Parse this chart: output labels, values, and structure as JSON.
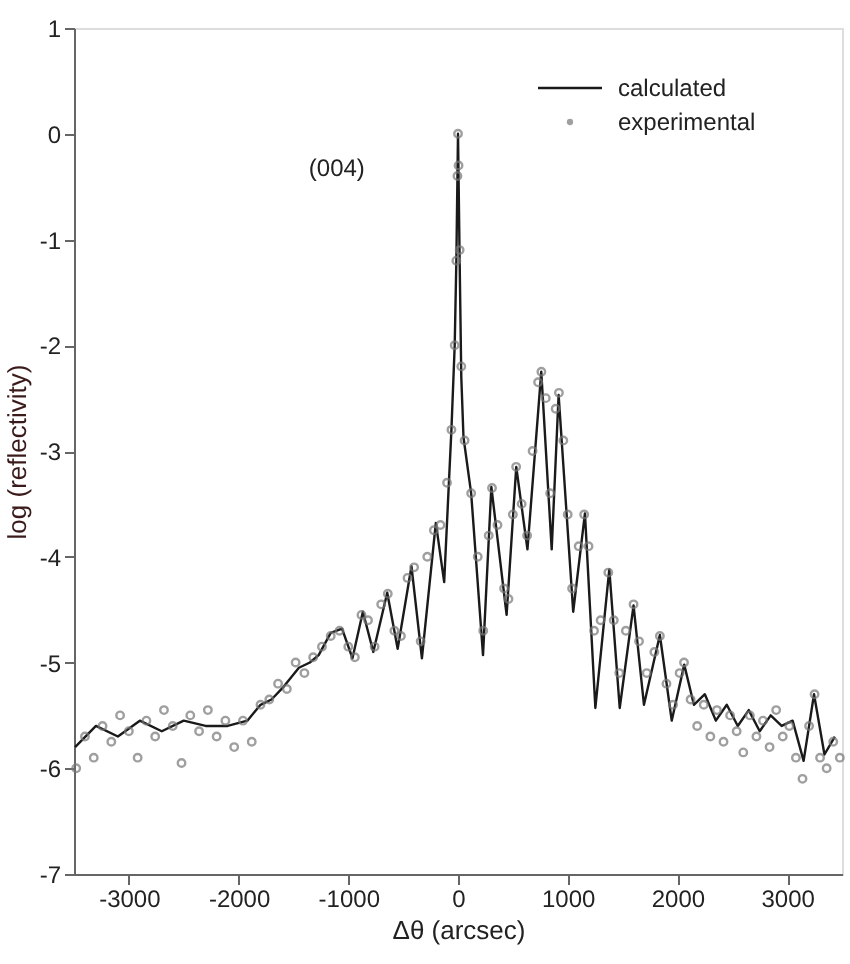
{
  "chart_data": {
    "type": "line",
    "xlabel": "Δθ (arcsec)",
    "ylabel": "log (reflectivity)",
    "annotations": [
      "(004)"
    ],
    "xlim": [
      -3500,
      3500
    ],
    "xticks": [
      -3000,
      -2000,
      -1000,
      0,
      1000,
      2000,
      3000
    ],
    "ylim": [
      -7,
      1
    ],
    "yticks": [
      -7,
      -6,
      -5,
      -4,
      -3,
      -2,
      -1,
      0,
      1
    ],
    "grid": false,
    "legend": "top right",
    "series": [
      {
        "name": "calculated",
        "color": "#1a1a1a",
        "marker": "none",
        "line_style": "solid",
        "x": [
          -3490,
          -3300,
          -3100,
          -2900,
          -2700,
          -2500,
          -2300,
          -2100,
          -1920,
          -1800,
          -1700,
          -1590,
          -1450,
          -1350,
          -1270,
          -1160,
          -1057,
          -962,
          -867,
          -772,
          -645,
          -550,
          -424,
          -329,
          -202,
          -126,
          -60,
          -30,
          -15,
          -5,
          0,
          5,
          15,
          30,
          50,
          120,
          228,
          304,
          443,
          531,
          633,
          759,
          854,
          917,
          1050,
          1157,
          1252,
          1379,
          1474,
          1600,
          1695,
          1840,
          1948,
          2062,
          2150,
          2250,
          2350,
          2450,
          2550,
          2650,
          2750,
          2850,
          2950,
          3050,
          3150,
          3245,
          3340,
          3435
        ],
        "values": [
          -5.8,
          -5.6,
          -5.7,
          -5.55,
          -5.65,
          -5.55,
          -5.6,
          -5.6,
          -5.55,
          -5.4,
          -5.35,
          -5.23,
          -5.05,
          -5.0,
          -4.93,
          -4.72,
          -4.68,
          -4.96,
          -4.52,
          -4.9,
          -4.34,
          -4.87,
          -4.09,
          -4.96,
          -3.68,
          -4.24,
          -2.8,
          -2.0,
          -1.2,
          -0.4,
          0.0,
          -0.4,
          -1.2,
          -2.3,
          -2.87,
          -3.4,
          -4.93,
          -3.34,
          -4.55,
          -3.15,
          -3.93,
          -2.25,
          -3.93,
          -2.47,
          -4.52,
          -3.59,
          -5.43,
          -4.12,
          -5.43,
          -4.46,
          -5.4,
          -4.74,
          -5.55,
          -5.02,
          -5.4,
          -5.3,
          -5.55,
          -5.4,
          -5.6,
          -5.45,
          -5.65,
          -5.5,
          -5.6,
          -5.55,
          -5.93,
          -5.3,
          -5.87,
          -5.7
        ]
      },
      {
        "name": "experimental",
        "type": "scatter",
        "color": "#777777",
        "marker": "circle",
        "x": [
          -3480,
          -3400,
          -3320,
          -3240,
          -3160,
          -3080,
          -3000,
          -2920,
          -2840,
          -2760,
          -2680,
          -2600,
          -2520,
          -2440,
          -2360,
          -2280,
          -2200,
          -2120,
          -2040,
          -1960,
          -1880,
          -1800,
          -1720,
          -1640,
          -1560,
          -1480,
          -1400,
          -1320,
          -1240,
          -1160,
          -1080,
          -1000,
          -940,
          -880,
          -820,
          -760,
          -700,
          -640,
          -580,
          -520,
          -460,
          -400,
          -340,
          -280,
          -220,
          -160,
          -100,
          -60,
          -30,
          -15,
          -5,
          0,
          5,
          15,
          30,
          60,
          120,
          180,
          230,
          280,
          310,
          360,
          420,
          460,
          500,
          530,
          580,
          630,
          680,
          730,
          760,
          800,
          840,
          890,
          920,
          960,
          1000,
          1040,
          1100,
          1150,
          1190,
          1240,
          1300,
          1370,
          1420,
          1470,
          1530,
          1600,
          1650,
          1720,
          1790,
          1840,
          1900,
          1960,
          2020,
          2060,
          2120,
          2180,
          2240,
          2300,
          2360,
          2420,
          2480,
          2540,
          2600,
          2660,
          2720,
          2780,
          2840,
          2900,
          2960,
          3020,
          3080,
          3140,
          3200,
          3250,
          3300,
          3360,
          3420,
          3480
        ],
        "values": [
          -6.0,
          -5.7,
          -5.9,
          -5.6,
          -5.75,
          -5.5,
          -5.65,
          -5.9,
          -5.55,
          -5.7,
          -5.45,
          -5.6,
          -5.95,
          -5.5,
          -5.65,
          -5.45,
          -5.7,
          -5.55,
          -5.8,
          -5.55,
          -5.75,
          -5.4,
          -5.35,
          -5.2,
          -5.25,
          -5.0,
          -5.1,
          -4.95,
          -4.85,
          -4.75,
          -4.7,
          -4.85,
          -4.95,
          -4.55,
          -4.6,
          -4.85,
          -4.45,
          -4.35,
          -4.7,
          -4.75,
          -4.2,
          -4.1,
          -4.8,
          -4.0,
          -3.75,
          -3.7,
          -3.3,
          -2.8,
          -2.0,
          -1.2,
          -0.4,
          0.0,
          -0.3,
          -1.1,
          -2.2,
          -2.9,
          -3.4,
          -4.0,
          -4.7,
          -3.8,
          -3.35,
          -3.7,
          -4.3,
          -4.4,
          -3.6,
          -3.15,
          -3.5,
          -3.8,
          -3.0,
          -2.35,
          -2.25,
          -2.5,
          -3.4,
          -2.6,
          -2.45,
          -2.9,
          -3.6,
          -4.3,
          -3.9,
          -3.6,
          -3.9,
          -4.7,
          -4.6,
          -4.15,
          -4.6,
          -5.1,
          -4.7,
          -4.45,
          -4.8,
          -5.1,
          -4.9,
          -4.75,
          -5.2,
          -5.4,
          -5.1,
          -5.0,
          -5.35,
          -5.6,
          -5.4,
          -5.7,
          -5.45,
          -5.75,
          -5.5,
          -5.65,
          -5.85,
          -5.5,
          -5.7,
          -5.55,
          -5.8,
          -5.45,
          -5.7,
          -5.6,
          -5.9,
          -6.1,
          -5.6,
          -5.3,
          -5.9,
          -6.0,
          -5.75,
          -5.9
        ]
      }
    ]
  }
}
